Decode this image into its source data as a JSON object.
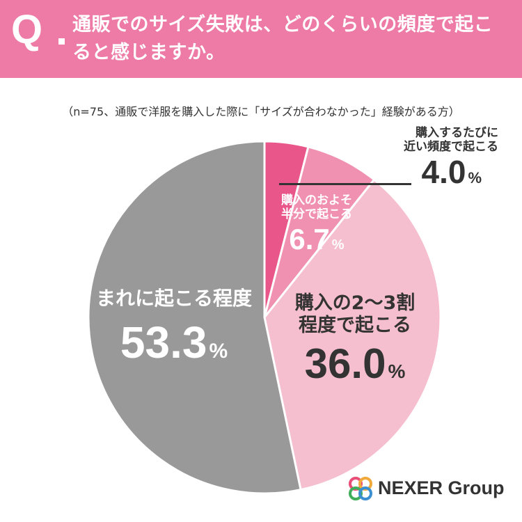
{
  "header": {
    "q_mark": "Q",
    "question": "通販でのサイズ失敗は、どのくらいの頻度で起こると感じますか。"
  },
  "note": "（n=75、通販で洋服を購入した際に「サイズが合わなかった」経験がある方）",
  "chart_data": {
    "type": "pie",
    "start_angle": "12 o'clock",
    "direction": "clockwise",
    "unit": "%",
    "slices": [
      {
        "label": "購入するたびに近い頻度で起こる",
        "label_lines": [
          "購入するたびに",
          "近い頻度で起こる"
        ],
        "value": 4.0,
        "value_text": "4.0",
        "color": "#e9578a"
      },
      {
        "label": "購入のおよそ半分で起こる",
        "label_lines": [
          "購入のおよそ",
          "半分で起こる"
        ],
        "value": 6.7,
        "value_text": "6.7",
        "color": "#f191b1"
      },
      {
        "label": "購入の2〜3割程度で起こる",
        "label_lines": [
          "購入の2〜3割",
          "程度で起こる"
        ],
        "value": 36.0,
        "value_text": "36.0",
        "color": "#f5bfcf"
      },
      {
        "label": "まれに起こる程度",
        "label_lines": [
          "まれに起こる程度"
        ],
        "value": 53.3,
        "value_text": "53.3",
        "color": "#999999"
      }
    ]
  },
  "logo": {
    "text": "NEXER Group"
  },
  "colors": {
    "header_bg": "#ee7aa6",
    "dark_text": "#333333",
    "white": "#ffffff"
  }
}
